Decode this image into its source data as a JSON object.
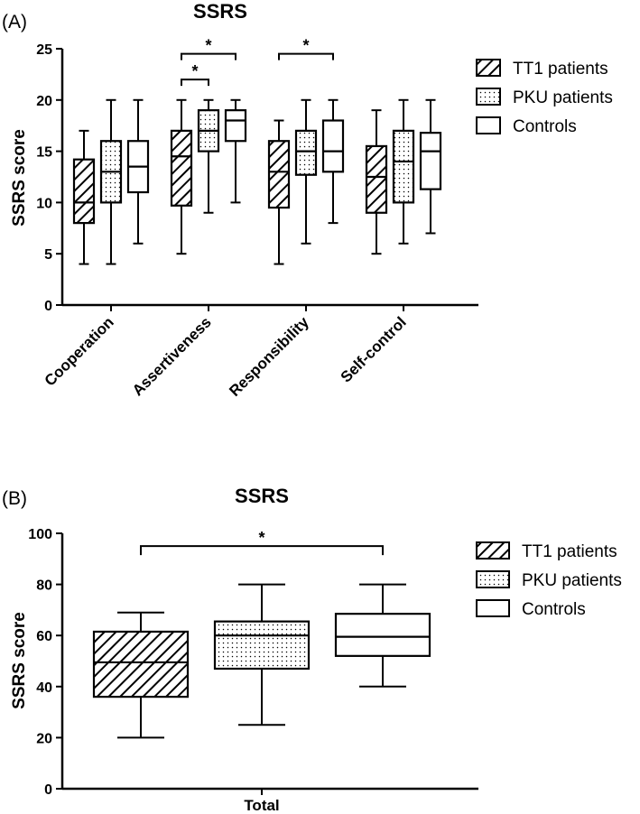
{
  "colors": {
    "ink": "#000000",
    "background": "#ffffff"
  },
  "chart_data": [
    {
      "panel_label": "(A)",
      "type": "boxplot",
      "title": "SSRS",
      "ylabel": "SSRS score",
      "xlabel": "",
      "ylim": [
        0,
        25
      ],
      "yticks": [
        "0",
        "5",
        "10",
        "15",
        "20",
        "25"
      ],
      "grid": false,
      "legend_position": "right",
      "categories": [
        "Cooperation",
        "Assertiveness",
        "Responsibility",
        "Self-control"
      ],
      "series": [
        {
          "name": "TT1 patients",
          "pattern": "diagonal-hatch",
          "boxes": [
            {
              "min": 4,
              "q1": 8,
              "median": 10,
              "q3": 14.2,
              "max": 17
            },
            {
              "min": 5,
              "q1": 9.7,
              "median": 14.5,
              "q3": 17,
              "max": 20
            },
            {
              "min": 4,
              "q1": 9.5,
              "median": 13,
              "q3": 16,
              "max": 18
            },
            {
              "min": 5,
              "q1": 9,
              "median": 12.5,
              "q3": 15.5,
              "max": 19
            }
          ]
        },
        {
          "name": "PKU patients",
          "pattern": "dots",
          "boxes": [
            {
              "min": 4,
              "q1": 10,
              "median": 13,
              "q3": 16,
              "max": 20
            },
            {
              "min": 9,
              "q1": 15,
              "median": 17,
              "q3": 19,
              "max": 20
            },
            {
              "min": 6,
              "q1": 12.7,
              "median": 15,
              "q3": 17,
              "max": 20
            },
            {
              "min": 6,
              "q1": 10,
              "median": 14,
              "q3": 17,
              "max": 20
            }
          ]
        },
        {
          "name": "Controls",
          "pattern": "none",
          "boxes": [
            {
              "min": 6,
              "q1": 11,
              "median": 13.5,
              "q3": 16,
              "max": 20
            },
            {
              "min": 10,
              "q1": 16,
              "median": 18,
              "q3": 19,
              "max": 20
            },
            {
              "min": 8,
              "q1": 13,
              "median": 15,
              "q3": 18,
              "max": 20
            },
            {
              "min": 7,
              "q1": 11.3,
              "median": 15,
              "q3": 16.8,
              "max": 20
            }
          ]
        }
      ],
      "significance": [
        {
          "category": 1,
          "from_series": 0,
          "to_series": 1,
          "y": 22,
          "label": "*"
        },
        {
          "category": 1,
          "from_series": 0,
          "to_series": 2,
          "y": 24.5,
          "label": "*"
        },
        {
          "category": 2,
          "from_series": 0,
          "to_series": 2,
          "y": 24.5,
          "label": "*"
        }
      ]
    },
    {
      "panel_label": "(B)",
      "type": "boxplot",
      "title": "SSRS",
      "ylabel": "SSRS score",
      "xlabel": "",
      "ylim": [
        0,
        100
      ],
      "yticks": [
        "0",
        "20",
        "40",
        "60",
        "80",
        "100"
      ],
      "grid": false,
      "legend_position": "right",
      "categories": [
        "Total"
      ],
      "series": [
        {
          "name": "TT1 patients",
          "pattern": "diagonal-hatch",
          "boxes": [
            {
              "min": 20,
              "q1": 36,
              "median": 49.5,
              "q3": 61.5,
              "max": 69
            }
          ]
        },
        {
          "name": "PKU patients",
          "pattern": "dots",
          "boxes": [
            {
              "min": 25,
              "q1": 47,
              "median": 60,
              "q3": 65.5,
              "max": 80
            }
          ]
        },
        {
          "name": "Controls",
          "pattern": "none",
          "boxes": [
            {
              "min": 40,
              "q1": 52,
              "median": 59.5,
              "q3": 68.5,
              "max": 80
            }
          ]
        }
      ],
      "significance": [
        {
          "category": 0,
          "from_series": 0,
          "to_series": 2,
          "y": 95,
          "label": "*"
        }
      ]
    }
  ]
}
